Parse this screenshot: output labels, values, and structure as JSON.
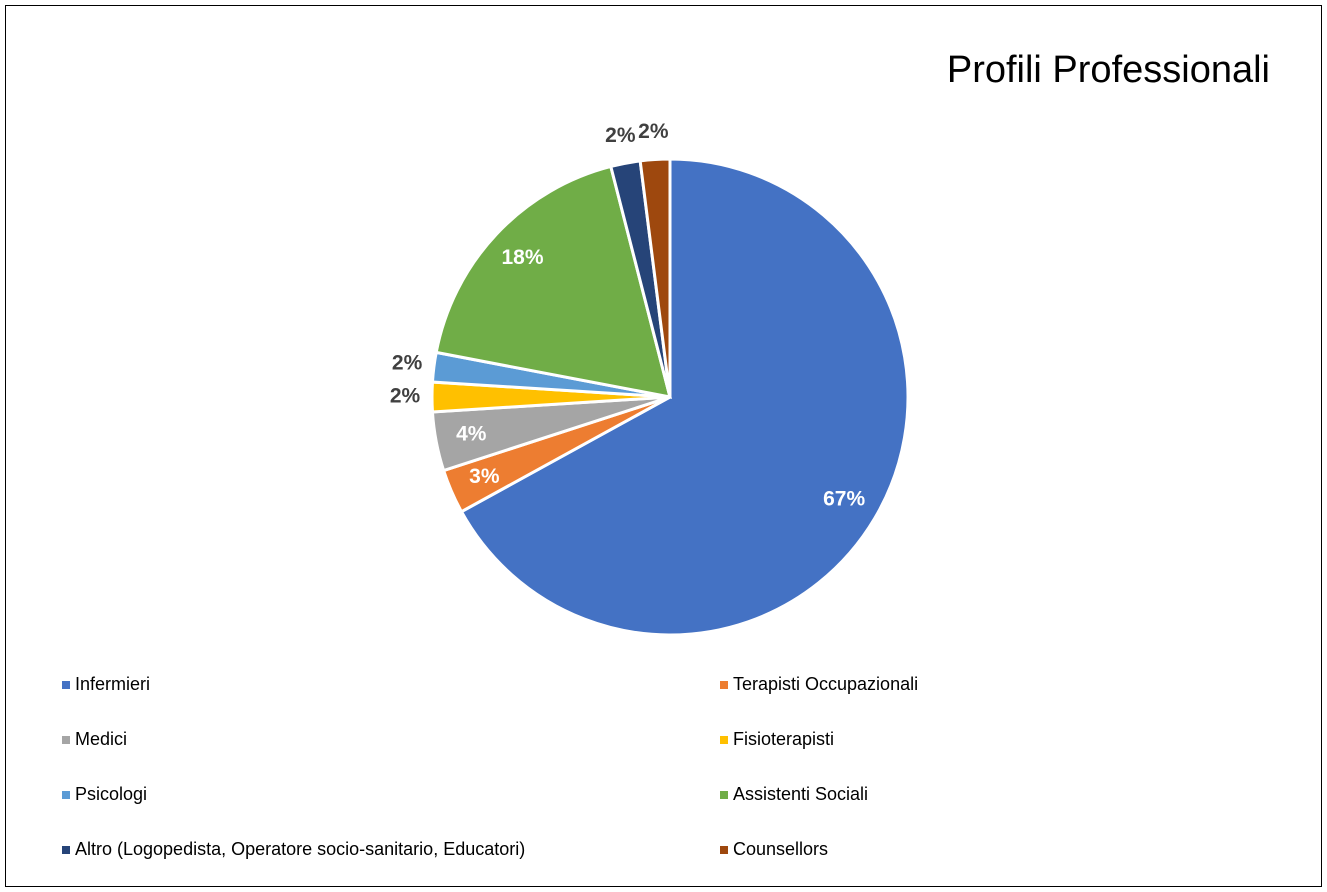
{
  "chart_data": {
    "type": "pie",
    "title": "Profili Professionali",
    "categories": [
      "Infermieri",
      "Terapisti Occupazionali",
      "Medici",
      "Fisioterapisti",
      "Psicologi",
      "Assistenti Sociali",
      "Altro (Logopedista, Operatore socio-sanitario, Educatori)",
      "Counsellors"
    ],
    "values": [
      67,
      3,
      4,
      2,
      2,
      18,
      2,
      2
    ],
    "value_labels": [
      "67%",
      "3%",
      "4%",
      "2%",
      "2%",
      "18%",
      "2%",
      "2%"
    ],
    "colors": [
      "#4472c4",
      "#ed7d31",
      "#a5a5a5",
      "#ffc000",
      "#5b9bd5",
      "#70ad47",
      "#264478",
      "#9e480e"
    ],
    "legend": "bottom"
  }
}
